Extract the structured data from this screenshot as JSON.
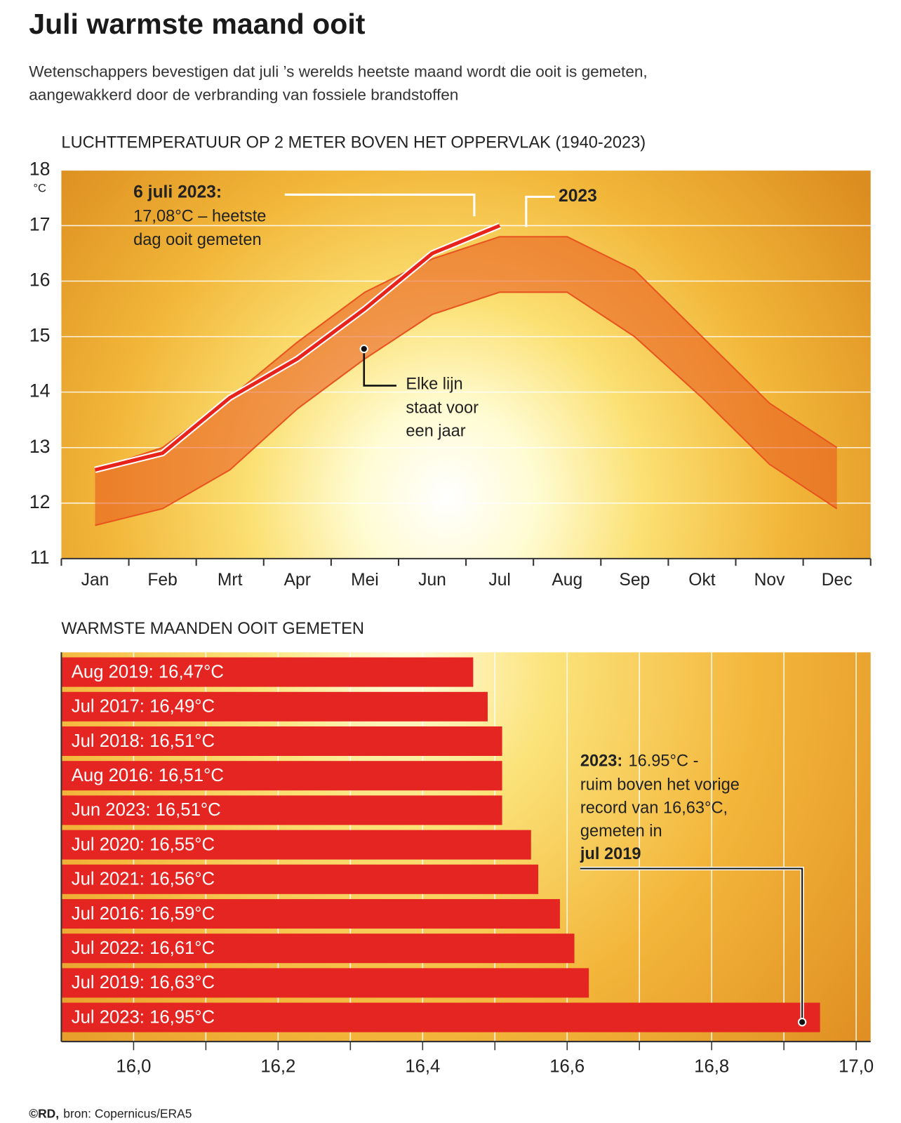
{
  "title": "Juli warmste maand ooit",
  "subtitle": [
    "Wetenschappers bevestigen dat juli ’s werelds heetste maand wordt die ooit is gemeten,",
    "aangewakkerd door de verbranding van fossiele brandstoffen"
  ],
  "chart_data": [
    {
      "type": "line",
      "title": "LUCHTTEMPERATUUR OP 2 METER BOVEN HET OPPERVLAK (1940-2023)",
      "categories": [
        "Jan",
        "Feb",
        "Mrt",
        "Apr",
        "Mei",
        "Jun",
        "Jul",
        "Aug",
        "Sep",
        "Okt",
        "Nov",
        "Dec"
      ],
      "y_unit": "°C",
      "ylim": [
        11,
        18
      ],
      "yticks": [
        11,
        12,
        13,
        14,
        15,
        16,
        17,
        18
      ],
      "grid": true,
      "series": [
        {
          "name": "2023",
          "color": "#e8231c",
          "values": [
            12.6,
            12.9,
            13.9,
            14.6,
            15.5,
            16.5,
            17.0,
            null,
            null,
            null,
            null,
            null
          ]
        }
      ],
      "band": {
        "color": "#e8541e",
        "low": [
          11.6,
          11.9,
          12.6,
          13.7,
          14.6,
          15.4,
          15.8,
          15.8,
          15.0,
          13.9,
          12.7,
          11.9
        ],
        "high": [
          12.6,
          13.0,
          13.9,
          14.9,
          15.8,
          16.4,
          16.8,
          16.8,
          16.2,
          15.0,
          13.8,
          13.0
        ]
      },
      "annotations": {
        "record": {
          "title": "6 juli 2023:",
          "lines": [
            "17,08°C – heetste",
            "dag ooit gemeten"
          ]
        },
        "note": {
          "lines": [
            "Elke lijn",
            "staat voor",
            "een jaar"
          ]
        }
      }
    },
    {
      "type": "bar",
      "orientation": "horizontal",
      "title": "WARMSTE MAANDEN OOIT GEMETEN",
      "values": [
        16.47,
        16.49,
        16.51,
        16.51,
        16.51,
        16.55,
        16.56,
        16.59,
        16.61,
        16.63,
        16.95
      ],
      "value_labels": [
        "Aug 2019: 16,47°C",
        "Jul 2017: 16,49°C",
        "Jul 2018: 16,51°C",
        "Aug 2016: 16,51°C",
        "Jun 2023: 16,51°C",
        "Jul 2020: 16,55°C",
        "Jul 2021: 16,56°C",
        "Jul 2016: 16,59°C",
        "Jul 2022: 16,61°C",
        "Jul 2019: 16,63°C",
        "Jul 2023: 16,95°C"
      ],
      "color": "#e52521",
      "xlim": [
        15.9,
        17.02
      ],
      "xticks": [
        {
          "value": 16,
          "label": "16,0"
        },
        {
          "value": 16.2,
          "label": "16,2"
        },
        {
          "value": 16.4,
          "label": "16,4"
        },
        {
          "value": 16.6,
          "label": "16,6"
        },
        {
          "value": 16.8,
          "label": "16,8"
        },
        {
          "value": 17,
          "label": "17,0"
        }
      ],
      "xminor": [
        16.1,
        16.3,
        16.5,
        16.7,
        16.9
      ],
      "grid": true,
      "annotation": {
        "bold": "2023:",
        "lines": [
          "16.95°C -",
          "ruim boven het vorige",
          "record van 16,63°C,",
          "gemeten in"
        ],
        "bold_end": "jul 2019"
      }
    }
  ],
  "footer": {
    "credit": "©RD,",
    "source": "bron: Copernicus/ERA5"
  }
}
